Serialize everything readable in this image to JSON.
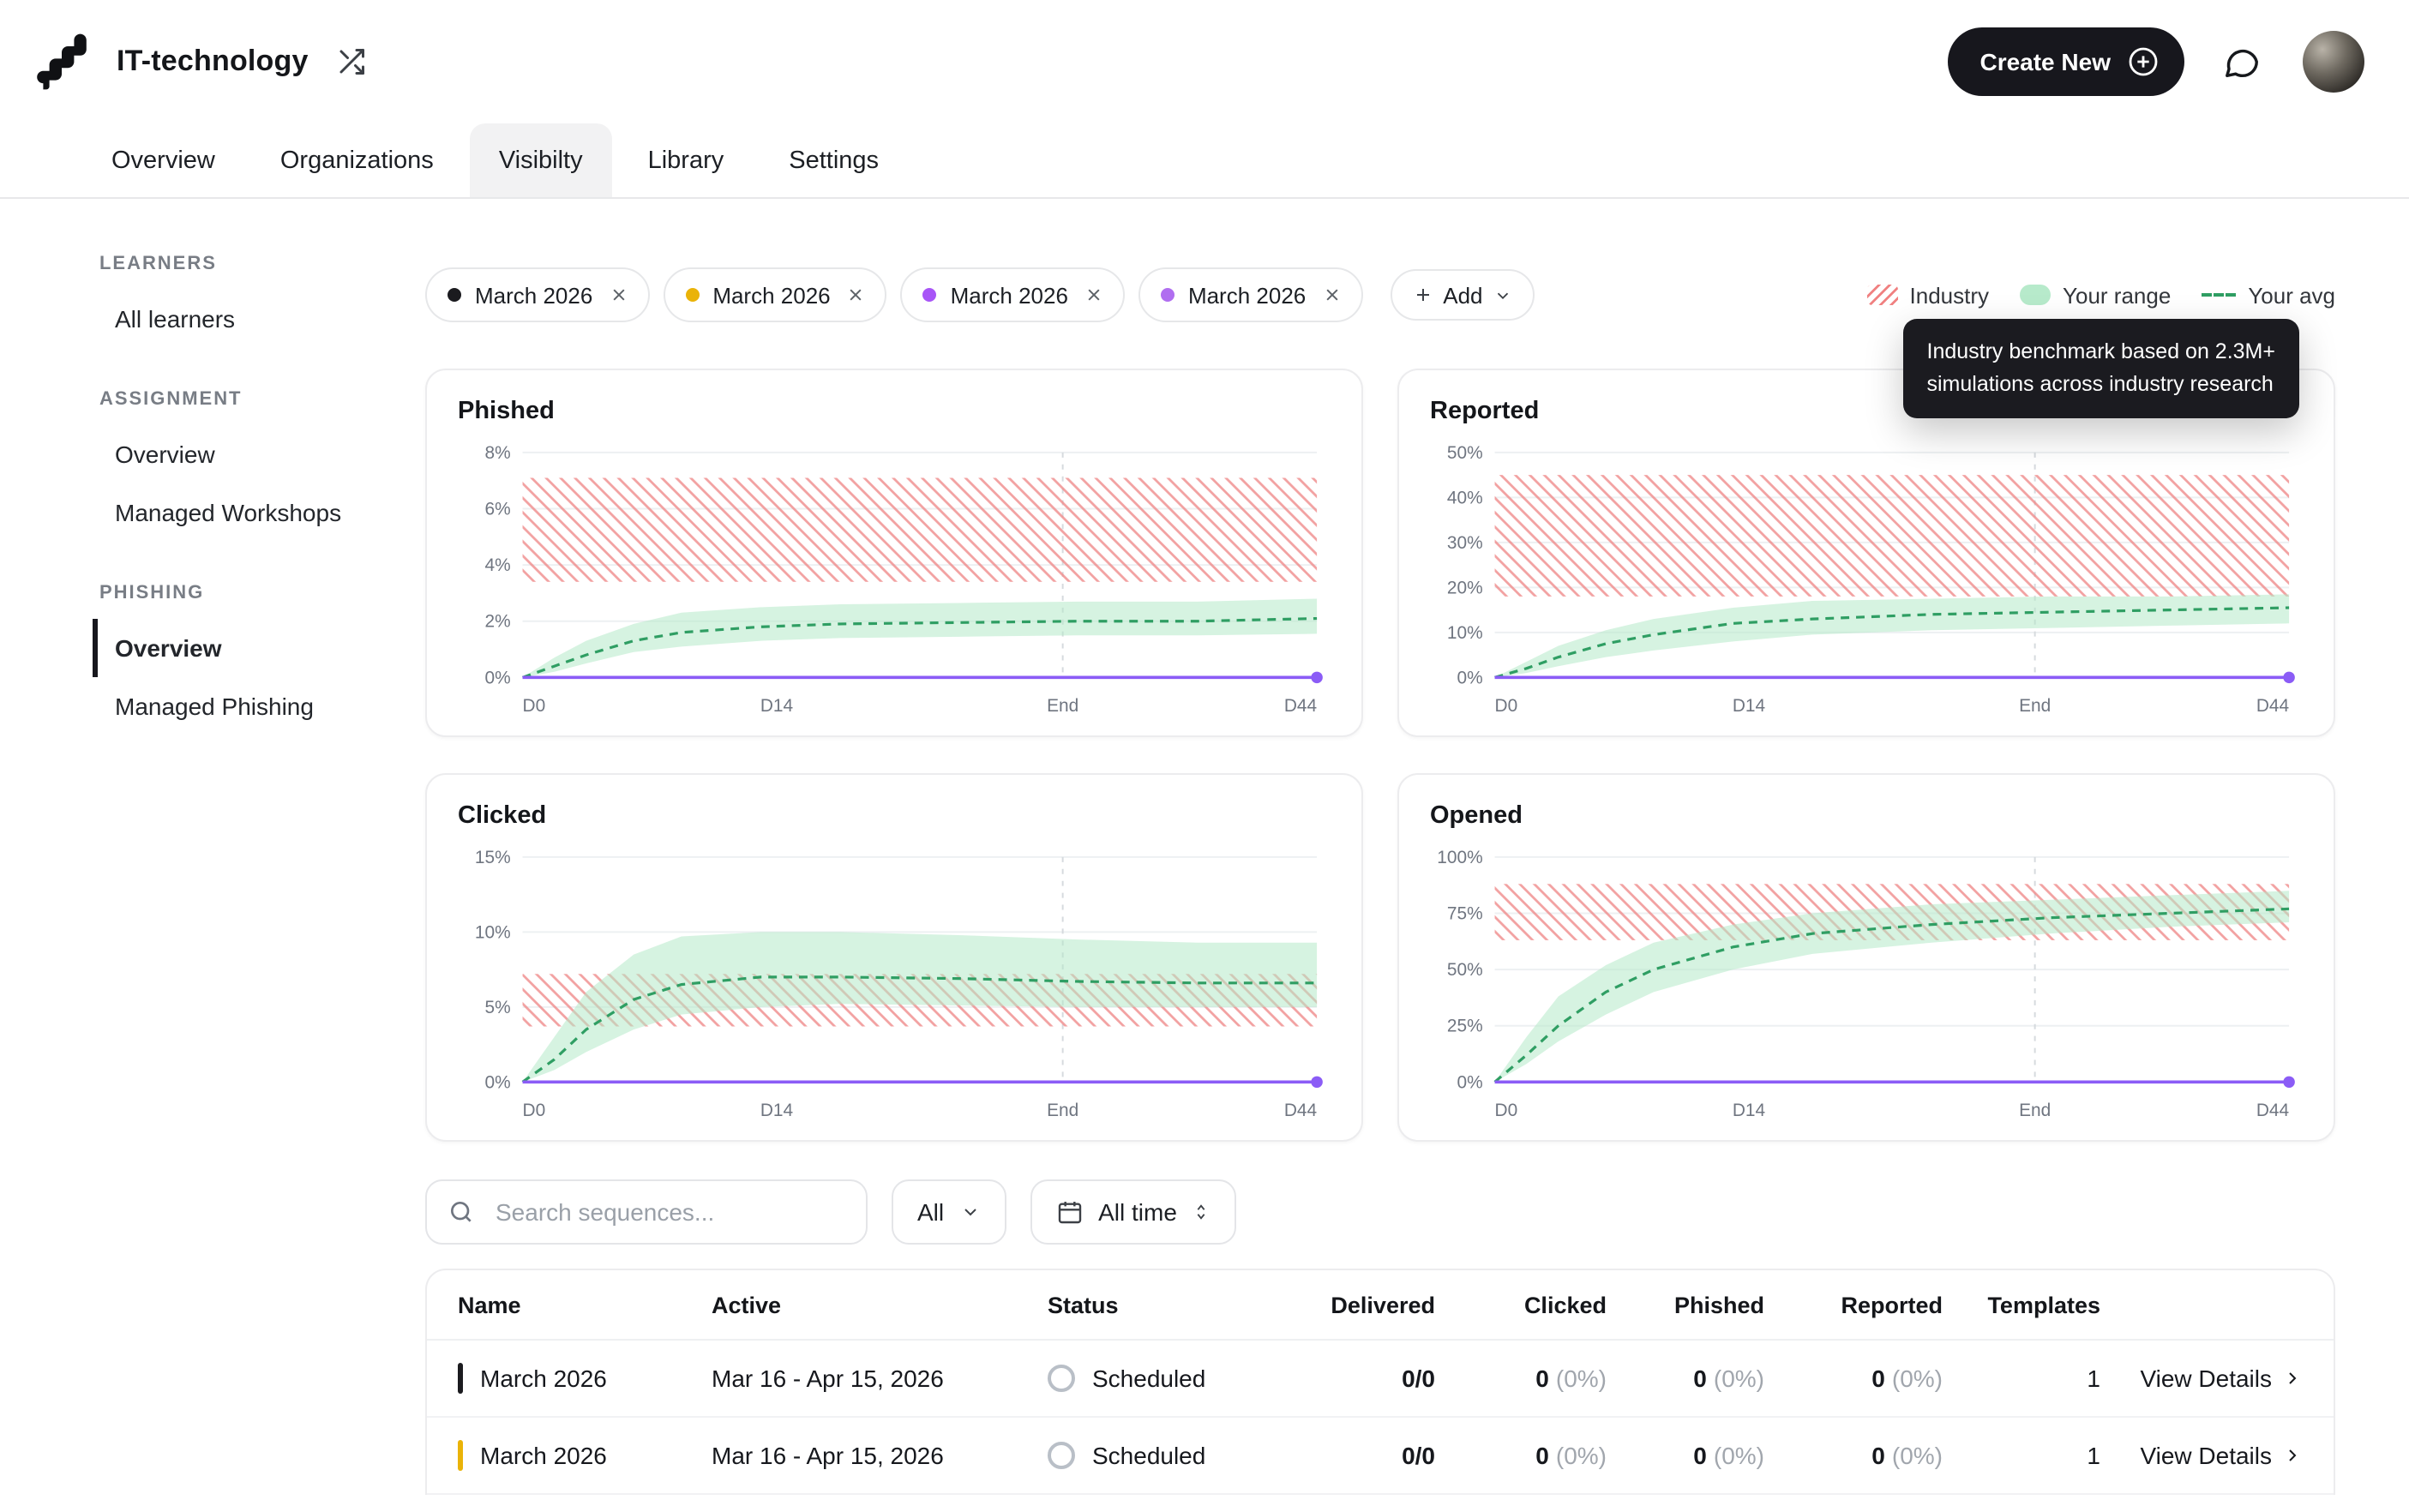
{
  "header": {
    "app_title": "IT-technology",
    "create_new_label": "Create New"
  },
  "tabs": {
    "items": [
      {
        "label": "Overview"
      },
      {
        "label": "Organizations"
      },
      {
        "label": "Visibilty"
      },
      {
        "label": "Library"
      },
      {
        "label": "Settings"
      }
    ],
    "active_index": 2
  },
  "sidebar": {
    "sections": [
      {
        "heading": "LEARNERS",
        "items": [
          {
            "label": "All learners"
          }
        ]
      },
      {
        "heading": "ASSIGNMENT",
        "items": [
          {
            "label": "Overview"
          },
          {
            "label": "Managed Workshops"
          }
        ]
      },
      {
        "heading": "PHISHING",
        "items": [
          {
            "label": "Overview"
          },
          {
            "label": "Managed Phishing"
          }
        ]
      }
    ],
    "active_item": "Overview"
  },
  "filters": {
    "chips": [
      {
        "label": "March 2026",
        "color": "#1b1b1f"
      },
      {
        "label": "March 2026",
        "color": "#eab308"
      },
      {
        "label": "March 2026",
        "color": "#a855f7"
      },
      {
        "label": "March 2026",
        "color": "#b06ef0"
      }
    ],
    "add_label": "Add"
  },
  "legend": {
    "industry": "Industry",
    "your_range": "Your range",
    "your_avg": "Your avg"
  },
  "tooltip": {
    "line1": "Industry benchmark based on 2.3M+",
    "line2": "simulations across industry research"
  },
  "chart_style": {
    "industry": "#ef8a8a",
    "range": "#b5e9c9",
    "avg": "#2f9e63",
    "flat": "#8b5cf6",
    "grid": "#edf0f2",
    "end_line": "#d6dade"
  },
  "chart_data": [
    {
      "type": "area",
      "id": "phished",
      "title": "Phished",
      "ymax": 8,
      "yticks": [
        8,
        6,
        4,
        2,
        0
      ],
      "xticks": [
        {
          "label": "D0",
          "t": 0
        },
        {
          "label": "D14",
          "t": 0.32
        },
        {
          "label": "End",
          "t": 0.68
        },
        {
          "label": "D44",
          "t": 1
        }
      ],
      "end_line_t": 0.68,
      "flat_value": 0,
      "industry_band": {
        "low": 3.4,
        "high": 7.1
      },
      "range": {
        "x": [
          0,
          0.04,
          0.08,
          0.14,
          0.2,
          0.3,
          0.4,
          0.55,
          0.7,
          0.85,
          1
        ],
        "low": [
          0,
          0.2,
          0.5,
          0.9,
          1.1,
          1.3,
          1.4,
          1.45,
          1.5,
          1.5,
          1.55
        ],
        "high": [
          0,
          0.7,
          1.3,
          1.9,
          2.3,
          2.5,
          2.6,
          2.65,
          2.7,
          2.7,
          2.8
        ]
      },
      "avg": {
        "x": [
          0,
          0.04,
          0.08,
          0.14,
          0.2,
          0.3,
          0.4,
          0.55,
          0.7,
          0.85,
          1
        ],
        "y": [
          0,
          0.4,
          0.8,
          1.3,
          1.6,
          1.8,
          1.9,
          1.95,
          2.0,
          2.0,
          2.1
        ]
      }
    },
    {
      "type": "area",
      "id": "reported",
      "title": "Reported",
      "ymax": 50,
      "yticks": [
        50,
        40,
        30,
        20,
        10,
        0
      ],
      "xticks": [
        {
          "label": "D0",
          "t": 0
        },
        {
          "label": "D14",
          "t": 0.32
        },
        {
          "label": "End",
          "t": 0.68
        },
        {
          "label": "D44",
          "t": 1
        }
      ],
      "end_line_t": 0.68,
      "flat_value": 0,
      "industry_band": {
        "low": 18,
        "high": 45
      },
      "range": {
        "x": [
          0,
          0.04,
          0.08,
          0.14,
          0.2,
          0.3,
          0.4,
          0.55,
          0.7,
          0.85,
          1
        ],
        "low": [
          0,
          1,
          2.5,
          4.5,
          6,
          8,
          9.5,
          10.5,
          11,
          11.5,
          12
        ],
        "high": [
          0,
          3.5,
          7,
          10.5,
          13,
          15.5,
          17,
          17.5,
          18,
          18,
          18.5
        ]
      },
      "avg": {
        "x": [
          0,
          0.04,
          0.08,
          0.14,
          0.2,
          0.3,
          0.4,
          0.55,
          0.7,
          0.85,
          1
        ],
        "y": [
          0,
          2,
          4.5,
          7.5,
          9.5,
          12,
          13,
          14,
          14.5,
          15,
          15.5
        ]
      }
    },
    {
      "type": "area",
      "id": "clicked",
      "title": "Clicked",
      "ymax": 15,
      "yticks": [
        15,
        10,
        5,
        0
      ],
      "xticks": [
        {
          "label": "D0",
          "t": 0
        },
        {
          "label": "D14",
          "t": 0.32
        },
        {
          "label": "End",
          "t": 0.68
        },
        {
          "label": "D44",
          "t": 1
        }
      ],
      "end_line_t": 0.68,
      "flat_value": 0,
      "industry_band": {
        "low": 3.7,
        "high": 7.2
      },
      "range": {
        "x": [
          0,
          0.04,
          0.08,
          0.14,
          0.2,
          0.3,
          0.4,
          0.55,
          0.7,
          0.85,
          1
        ],
        "low": [
          0,
          0.8,
          2,
          3.5,
          4.5,
          5,
          5.2,
          5.1,
          5,
          5,
          5
        ],
        "high": [
          0,
          3,
          6,
          8.5,
          9.7,
          10,
          10,
          9.8,
          9.5,
          9.3,
          9.3
        ]
      },
      "avg": {
        "x": [
          0,
          0.04,
          0.08,
          0.14,
          0.2,
          0.3,
          0.4,
          0.55,
          0.7,
          0.85,
          1
        ],
        "y": [
          0,
          1.5,
          3.5,
          5.5,
          6.5,
          7,
          7,
          6.9,
          6.7,
          6.6,
          6.6
        ]
      }
    },
    {
      "type": "area",
      "id": "opened",
      "title": "Opened",
      "ymax": 100,
      "yticks": [
        100,
        75,
        50,
        25,
        0
      ],
      "xticks": [
        {
          "label": "D0",
          "t": 0
        },
        {
          "label": "D14",
          "t": 0.32
        },
        {
          "label": "End",
          "t": 0.68
        },
        {
          "label": "D44",
          "t": 1
        }
      ],
      "end_line_t": 0.68,
      "flat_value": 0,
      "industry_band": {
        "low": 63,
        "high": 88
      },
      "range": {
        "x": [
          0,
          0.04,
          0.08,
          0.14,
          0.2,
          0.3,
          0.4,
          0.55,
          0.7,
          0.85,
          1
        ],
        "low": [
          0,
          8,
          18,
          30,
          40,
          50,
          57,
          62,
          66,
          69,
          71
        ],
        "high": [
          0,
          20,
          38,
          52,
          62,
          70,
          75,
          79,
          81,
          83,
          85
        ]
      },
      "avg": {
        "x": [
          0,
          0.04,
          0.08,
          0.14,
          0.2,
          0.3,
          0.4,
          0.55,
          0.7,
          0.85,
          1
        ],
        "y": [
          0,
          12,
          25,
          40,
          50,
          60,
          66,
          70,
          73,
          75,
          77
        ]
      }
    }
  ],
  "toolbar": {
    "search_placeholder": "Search sequences...",
    "filter_all": "All",
    "time_range": "All time"
  },
  "table": {
    "columns": [
      "Name",
      "Active",
      "Status",
      "Delivered",
      "Clicked",
      "Phished",
      "Reported",
      "Templates"
    ],
    "details_label": "View Details",
    "rows": [
      {
        "name": "March 2026",
        "bar_color": "#1b1b1f",
        "active": "Mar 16 - Apr 15, 2026",
        "status": "Scheduled",
        "delivered": "0/0",
        "clicked_value": "0",
        "clicked_pct": "(0%)",
        "phished_value": "0",
        "phished_pct": "(0%)",
        "reported_value": "0",
        "reported_pct": "(0%)",
        "templates": "1"
      },
      {
        "name": "March 2026",
        "bar_color": "#eab308",
        "active": "Mar 16 - Apr 15, 2026",
        "status": "Scheduled",
        "delivered": "0/0",
        "clicked_value": "0",
        "clicked_pct": "(0%)",
        "phished_value": "0",
        "phished_pct": "(0%)",
        "reported_value": "0",
        "reported_pct": "(0%)",
        "templates": "1"
      }
    ]
  }
}
